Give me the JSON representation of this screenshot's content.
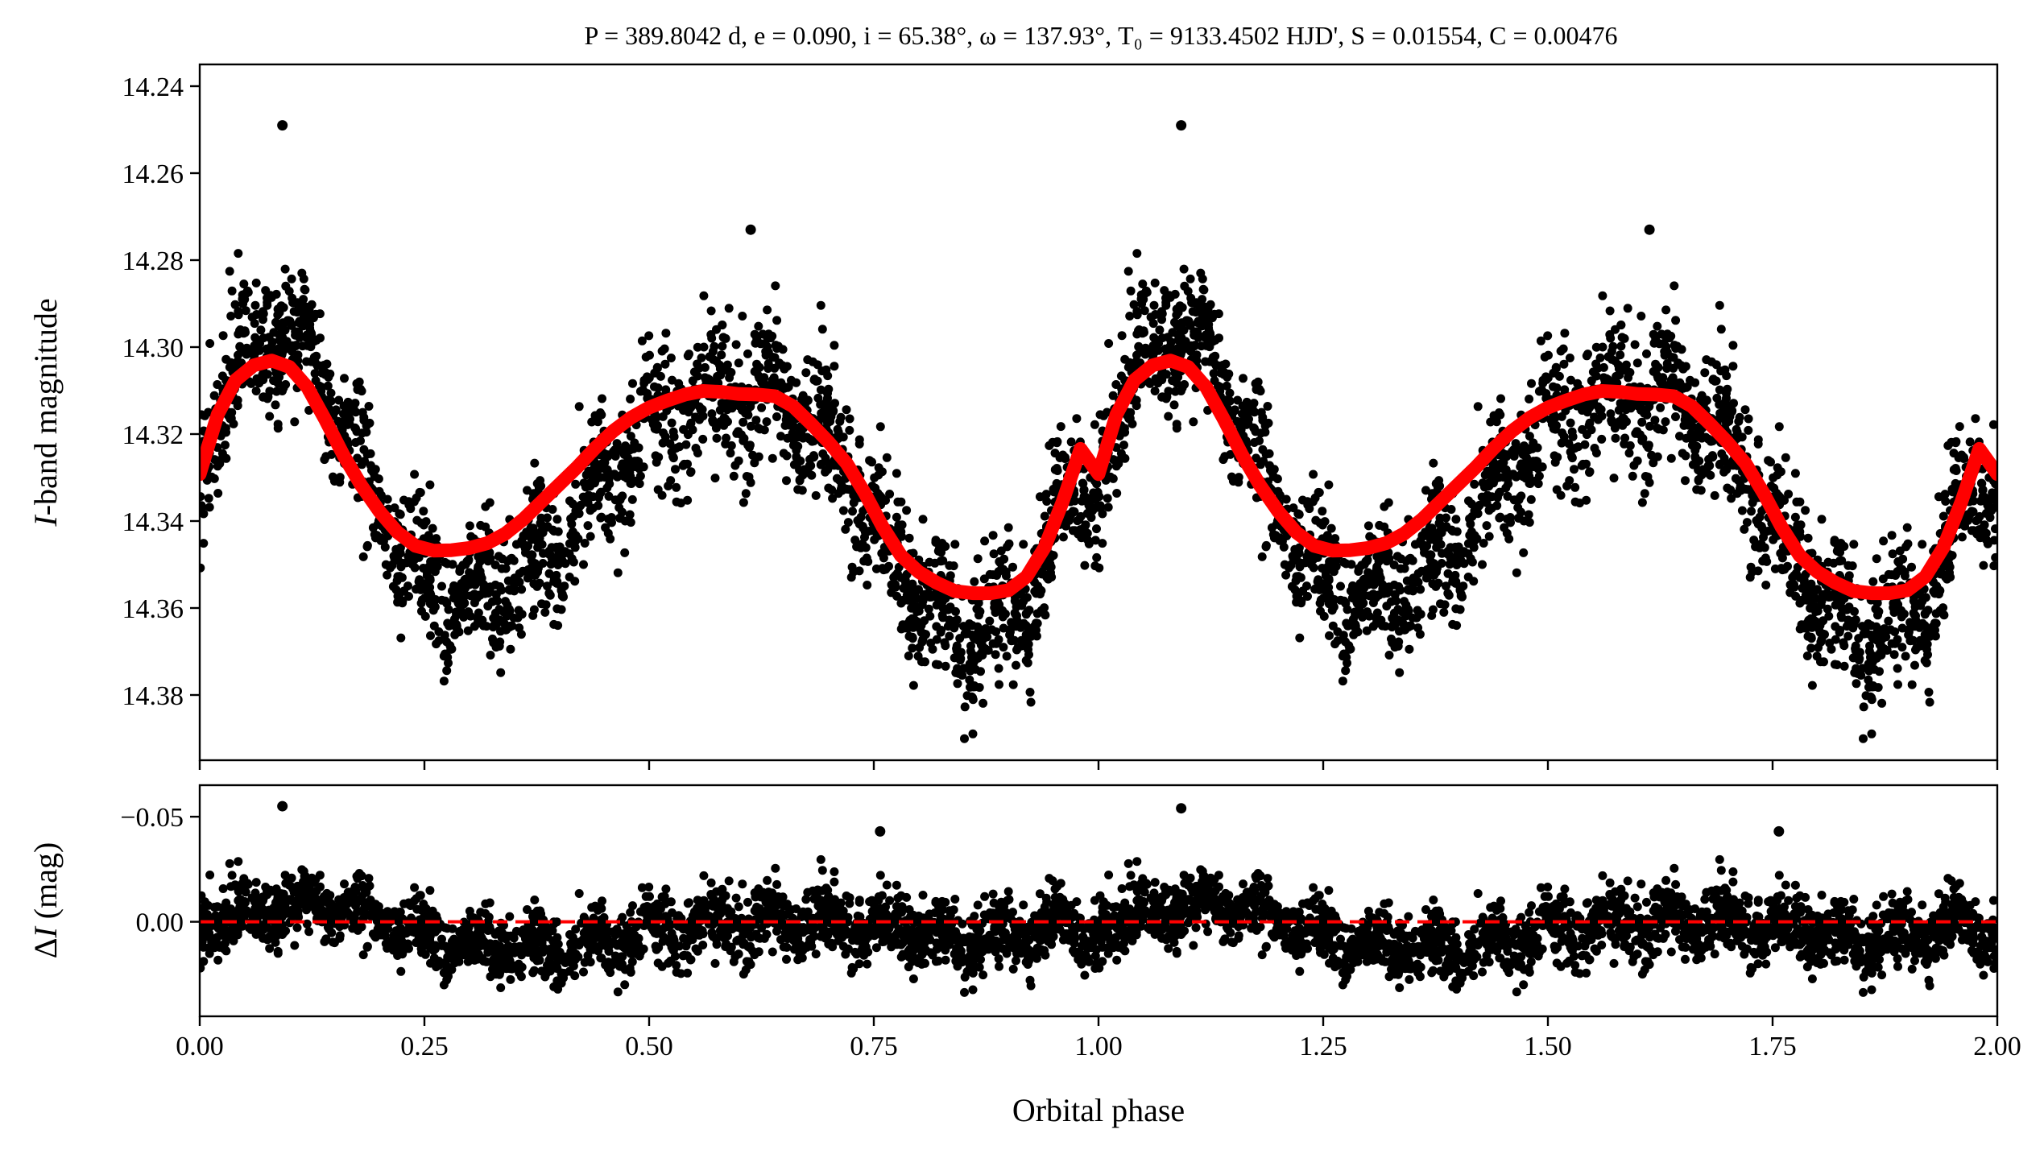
{
  "chart_data": [
    {
      "type": "scatter",
      "panel": "light-curve",
      "title": "P = 389.8042 d, e = 0.090, i = 65.38°, ω = 137.93°, T₀ = 9133.4502 HJD', S = 0.01554, C = 0.00476",
      "xlabel": "",
      "ylabel": "I-band magnitude",
      "ylabel_italic_part": "I",
      "ylabel_rest": "-band magnitude",
      "xlim": [
        0,
        2
      ],
      "ylim": [
        14.395,
        14.235
      ],
      "y_inverted": true,
      "xticks": [
        0,
        0.25,
        0.5,
        0.75,
        1.0,
        1.25,
        1.5,
        1.75,
        2.0
      ],
      "yticks": [
        14.24,
        14.26,
        14.28,
        14.3,
        14.32,
        14.34,
        14.36,
        14.38
      ],
      "ytick_labels": [
        "14.24",
        "14.26",
        "14.28",
        "14.30",
        "14.32",
        "14.34",
        "14.36",
        "14.38"
      ],
      "grid": false,
      "colors": {
        "points": "#000000",
        "model": "#ff0000"
      },
      "series": [
        {
          "kind": "points",
          "x": [
            0.0,
            0.01,
            0.02,
            0.03,
            0.04,
            0.05,
            0.06,
            0.07,
            0.08,
            0.09,
            0.1,
            0.11,
            0.12,
            0.13,
            0.14,
            0.15,
            0.16,
            0.17,
            0.18,
            0.19,
            0.2,
            0.22,
            0.24,
            0.26,
            0.28,
            0.3,
            0.32,
            0.34,
            0.36,
            0.38,
            0.4,
            0.42,
            0.44,
            0.46,
            0.48,
            0.5,
            0.52,
            0.54,
            0.56,
            0.58,
            0.6,
            0.62,
            0.64,
            0.66,
            0.68,
            0.7,
            0.72,
            0.74,
            0.76,
            0.78,
            0.8,
            0.82,
            0.84,
            0.86,
            0.88,
            0.9,
            0.92,
            0.94,
            0.96,
            0.98
          ],
          "y": [
            14.33,
            14.322,
            14.315,
            14.31,
            14.306,
            14.302,
            14.3,
            14.298,
            14.297,
            14.296,
            14.297,
            14.298,
            14.3,
            14.304,
            14.308,
            14.313,
            14.318,
            14.323,
            14.328,
            14.333,
            14.337,
            14.344,
            14.349,
            14.353,
            14.355,
            14.356,
            14.355,
            14.354,
            14.351,
            14.347,
            14.343,
            14.338,
            14.333,
            14.328,
            14.323,
            14.319,
            14.316,
            14.313,
            14.311,
            14.31,
            14.31,
            14.311,
            14.312,
            14.314,
            14.318,
            14.323,
            14.329,
            14.336,
            14.343,
            14.35,
            14.356,
            14.361,
            14.364,
            14.365,
            14.364,
            14.362,
            14.356,
            14.348,
            14.338,
            14.33
          ]
        },
        {
          "kind": "model",
          "x": [
            0.0,
            0.02,
            0.04,
            0.06,
            0.08,
            0.1,
            0.12,
            0.14,
            0.16,
            0.18,
            0.2,
            0.22,
            0.24,
            0.26,
            0.28,
            0.3,
            0.32,
            0.34,
            0.36,
            0.38,
            0.4,
            0.42,
            0.44,
            0.46,
            0.48,
            0.5,
            0.52,
            0.54,
            0.56,
            0.58,
            0.6,
            0.62,
            0.64,
            0.66,
            0.68,
            0.7,
            0.72,
            0.74,
            0.76,
            0.78,
            0.8,
            0.82,
            0.84,
            0.86,
            0.88,
            0.9,
            0.92,
            0.94,
            0.96,
            0.98,
            1.0
          ],
          "y": [
            14.3292,
            14.3155,
            14.3076,
            14.3042,
            14.3031,
            14.3046,
            14.3093,
            14.3168,
            14.3249,
            14.3319,
            14.3378,
            14.3426,
            14.3457,
            14.3468,
            14.3467,
            14.3462,
            14.3451,
            14.3429,
            14.3396,
            14.3356,
            14.3316,
            14.3276,
            14.3232,
            14.3193,
            14.3162,
            14.3139,
            14.3123,
            14.3109,
            14.3101,
            14.3103,
            14.3108,
            14.3109,
            14.3113,
            14.3136,
            14.3176,
            14.3219,
            14.3268,
            14.3336,
            14.3414,
            14.3479,
            14.3517,
            14.3542,
            14.3561,
            14.3566,
            14.3566,
            14.3559,
            14.3528,
            14.3461,
            14.3356,
            14.3234,
            14.3292
          ]
        }
      ],
      "outliers": [
        {
          "x": 0.092,
          "y": 14.249
        },
        {
          "x": 0.613,
          "y": 14.273
        },
        {
          "x": 1.092,
          "y": 14.249
        },
        {
          "x": 1.613,
          "y": 14.273
        }
      ]
    },
    {
      "type": "scatter",
      "panel": "residuals",
      "xlabel": "Orbital phase",
      "ylabel": "ΔI (mag)",
      "ylabel_delta": "Δ",
      "ylabel_italic_part": "I",
      "ylabel_rest": " (mag)",
      "xlim": [
        0,
        2
      ],
      "ylim": [
        0.045,
        -0.065
      ],
      "y_inverted": true,
      "xticks": [
        0,
        0.25,
        0.5,
        0.75,
        1.0,
        1.25,
        1.5,
        1.75,
        2.0
      ],
      "xtick_labels": [
        "0.00",
        "0.25",
        "0.50",
        "0.75",
        "1.00",
        "1.25",
        "1.50",
        "1.75",
        "2.00"
      ],
      "yticks": [
        -0.05,
        0.0
      ],
      "ytick_labels": [
        "−0.05",
        "0.00"
      ],
      "grid": false,
      "zero_line": {
        "y": 0,
        "style": "dashed",
        "color": "#ff0000"
      },
      "residual_scatter_std": 0.011,
      "outliers": [
        {
          "x": 0.092,
          "y": -0.055
        },
        {
          "x": 1.092,
          "y": -0.054
        },
        {
          "x": 0.757,
          "y": -0.043
        },
        {
          "x": 1.757,
          "y": -0.043
        }
      ]
    }
  ]
}
